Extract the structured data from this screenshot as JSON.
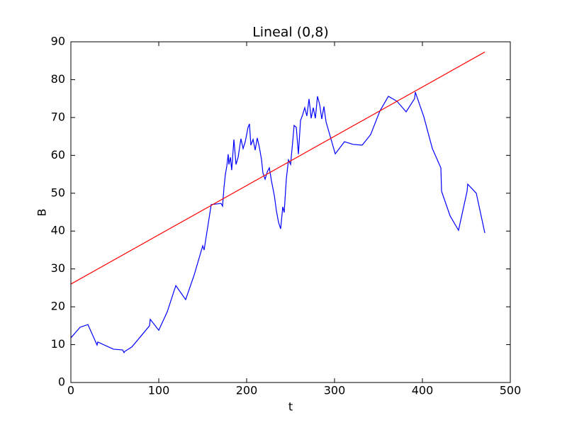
{
  "chart_data": {
    "type": "line",
    "title": "Lineal (0,8)",
    "x_label": "t",
    "y_label": "B",
    "xlim": [
      0,
      500
    ],
    "xticks": [
      0,
      100,
      200,
      300,
      400,
      500
    ],
    "ylim": [
      0,
      90
    ],
    "yticks": [
      0,
      10,
      20,
      30,
      40,
      50,
      60,
      70,
      80,
      90
    ],
    "grid": false,
    "series": [
      {
        "color": "#0000ff",
        "x": [
          0,
          10.5,
          19.4,
          29.8,
          30.6,
          48.4,
          58.9,
          60.5,
          61.3,
          69.4,
          80.6,
          89.5,
          90.3,
          100,
          109.7,
          119.4,
          130.6,
          140.3,
          150,
          151.6,
          159.7,
          170.9,
          172.6,
          174.2,
          175.8,
          177.4,
          179,
          179.8,
          181.5,
          183,
          185.5,
          187.9,
          190.3,
          193.5,
          196,
          198.4,
          201.6,
          203.2,
          204.8,
          207.3,
          209.7,
          212.1,
          214.5,
          216.9,
          218.5,
          221,
          223.4,
          225.8,
          228.2,
          231.5,
          233.9,
          236.3,
          238.7,
          241.1,
          242.7,
          245.2,
          247.6,
          250,
          252.4,
          254,
          256.5,
          258.9,
          261.3,
          263.7,
          266.1,
          268.5,
          271,
          273.4,
          275.8,
          278.2,
          280.6,
          283.1,
          285.5,
          287.9,
          290.3,
          300.8,
          311.3,
          321,
          331.5,
          341.1,
          351.6,
          361.3,
          371,
          381.5,
          391.1,
          391.9,
          401.6,
          411.3,
          421,
          421.8,
          431.5,
          441.1,
          450.8,
          451.6,
          461.3,
          471
        ],
        "values": [
          11.8,
          14.6,
          15.3,
          9.9,
          10.7,
          8.8,
          8.6,
          7.9,
          8.2,
          9.4,
          12.5,
          15,
          16.7,
          13.8,
          18.7,
          25.6,
          21.9,
          28.4,
          36.1,
          35,
          47,
          47.3,
          46.6,
          51.5,
          55,
          57.1,
          60.3,
          57.6,
          59.5,
          56.1,
          64.2,
          57.6,
          59.5,
          64.4,
          61.8,
          63.6,
          67.4,
          68.3,
          62.7,
          64.2,
          61.4,
          64.6,
          62.1,
          58.9,
          55.4,
          53.7,
          55.6,
          56.7,
          53.3,
          49.4,
          45.3,
          42.3,
          40.6,
          46.4,
          44.9,
          53.9,
          58.8,
          57.6,
          63.6,
          67.9,
          67.4,
          60.3,
          69.2,
          70.7,
          72.6,
          70.4,
          74.9,
          69.8,
          72.6,
          69.8,
          75.6,
          73.4,
          69.6,
          72.9,
          68.9,
          60.4,
          63.6,
          62.9,
          62.7,
          65.5,
          71.7,
          75.6,
          74.3,
          71.5,
          75,
          76.7,
          70.2,
          61.8,
          56.7,
          50.5,
          44,
          40.2,
          50.5,
          52.4,
          50,
          39.5
        ]
      },
      {
        "color": "#ff0000",
        "x": [
          0,
          471
        ],
        "values": [
          26,
          87.3
        ]
      }
    ]
  }
}
